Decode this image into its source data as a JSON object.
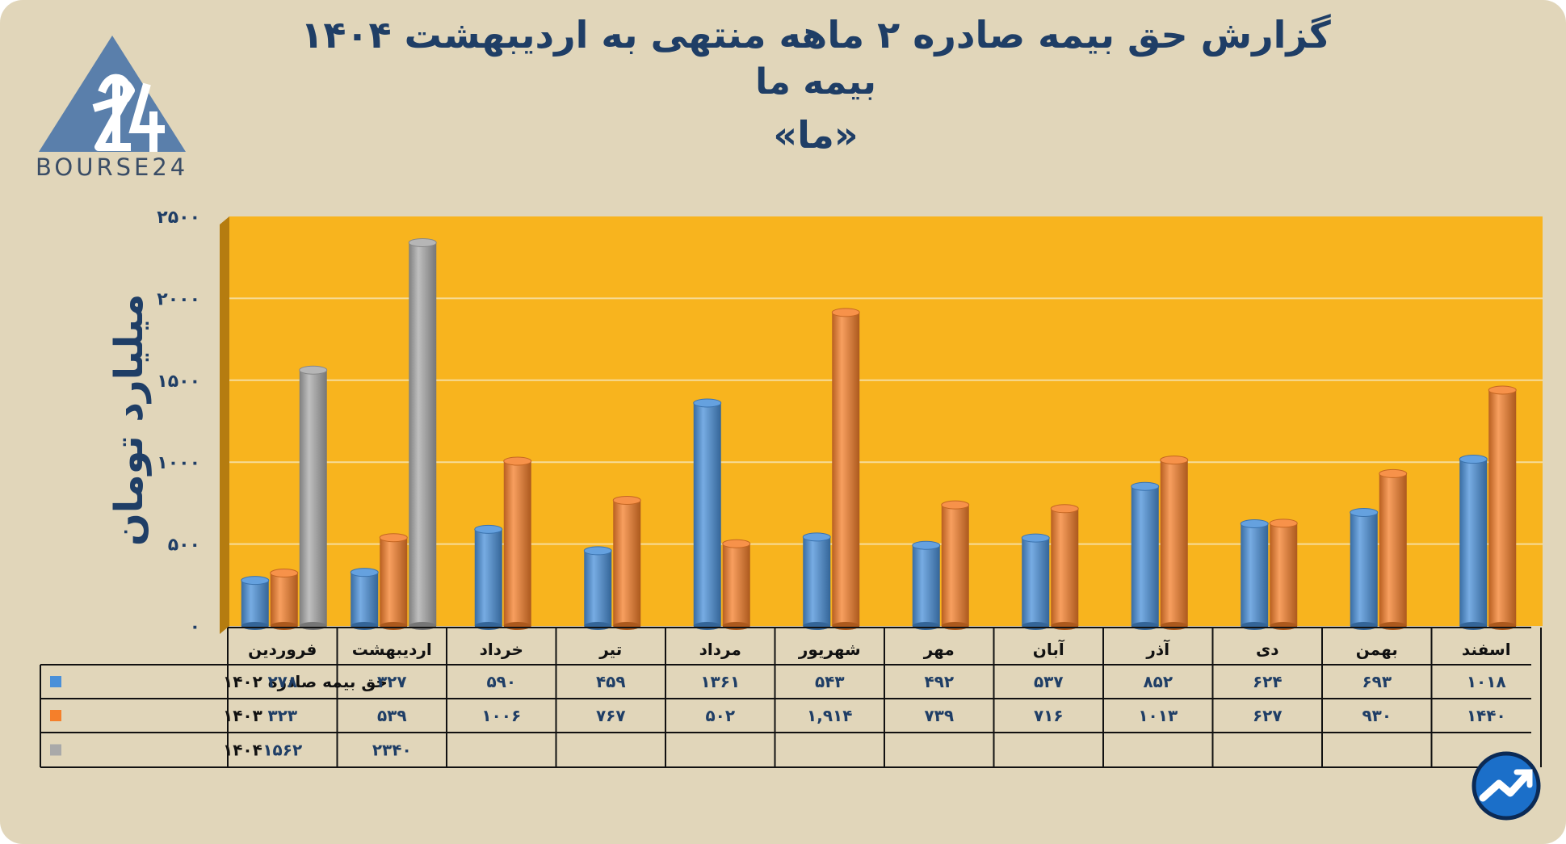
{
  "title_lines": [
    "گزارش  حق بیمه صادره ۲ ماهه منتهی به اردیبهشت ۱۴۰۴",
    "بیمه ما",
    "«ما»"
  ],
  "logo": {
    "text": "BOURSE24",
    "mark": "24",
    "icon": "triangle-24-logo"
  },
  "badge_icon": "trend-arrow-icon",
  "colors": {
    "background": "#e1d6ba",
    "plot_area": "#f8b41e",
    "series_1402": "#4a90d9",
    "series_1403": "#f57f2a",
    "series_1404": "#a9a9a9",
    "text": "#1f3e66"
  },
  "chart_data": {
    "type": "bar",
    "title": "گزارش  حق بیمه صادره ۲ ماهه منتهی به اردیبهشت ۱۴۰۴",
    "subtitle": "بیمه ما «ما»",
    "ylabel": "میلیارد تومان",
    "xlabel": "",
    "ylim": [
      0,
      2500
    ],
    "yticks": [
      0,
      500,
      1000,
      1500,
      2000,
      2500
    ],
    "ytick_labels": [
      "۰",
      "۵۰۰",
      "۱۰۰۰",
      "۱۵۰۰",
      "۲۰۰۰",
      "۲۵۰۰"
    ],
    "grid": true,
    "legend": "data-table-rows-left",
    "categories": [
      "فروردین",
      "اردیبهشت",
      "خرداد",
      "تیر",
      "مرداد",
      "شهریور",
      "مهر",
      "آبان",
      "آذر",
      "دی",
      "بهمن",
      "اسفند"
    ],
    "series": [
      {
        "name": "حق بیمه صادره ۱۴۰۲",
        "color": "#4a90d9",
        "values": [
          278,
          327,
          590,
          459,
          1361,
          543,
          492,
          537,
          852,
          624,
          693,
          1018
        ],
        "labels": [
          "۲۷۸",
          "۳۲۷",
          "۵۹۰",
          "۴۵۹",
          "۱۳۶۱",
          "۵۴۳",
          "۴۹۲",
          "۵۳۷",
          "۸۵۲",
          "۶۲۴",
          "۶۹۳",
          "۱۰۱۸"
        ]
      },
      {
        "name": "۱۴۰۳",
        "color": "#f57f2a",
        "values": [
          323,
          539,
          1006,
          767,
          502,
          1914,
          739,
          716,
          1013,
          627,
          930,
          1440
        ],
        "labels": [
          "۳۲۳",
          "۵۳۹",
          "۱۰۰۶",
          "۷۶۷",
          "۵۰۲",
          "۱,۹۱۴",
          "۷۳۹",
          "۷۱۶",
          "۱۰۱۳",
          "۶۲۷",
          "۹۳۰",
          "۱۴۴۰"
        ]
      },
      {
        "name": "۱۴۰۴",
        "color": "#a9a9a9",
        "values": [
          1562,
          2340,
          null,
          null,
          null,
          null,
          null,
          null,
          null,
          null,
          null,
          null
        ],
        "labels": [
          "۱۵۶۲",
          "۲۳۴۰",
          "",
          "",
          "",
          "",
          "",
          "",
          "",
          "",
          "",
          ""
        ]
      }
    ]
  }
}
